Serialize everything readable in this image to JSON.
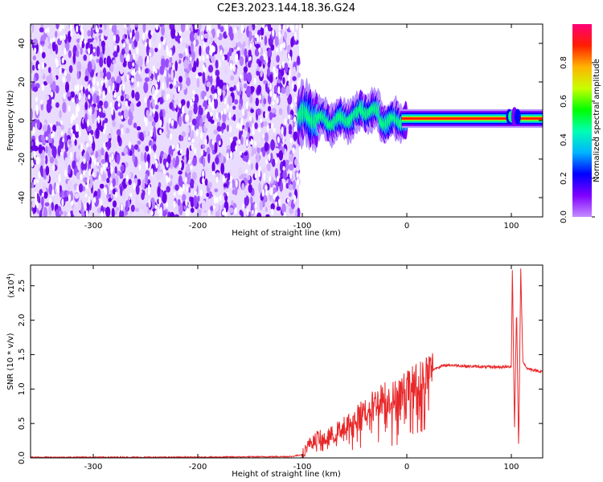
{
  "title": "C2E3.2023.144.18.36.G24",
  "chart_data": [
    {
      "type": "heatmap",
      "title": "C2E3.2023.144.18.36.G24",
      "xlabel": "Height of straight line (km)",
      "ylabel": "Frequency (Hz)",
      "xlim": [
        -360,
        130
      ],
      "ylim": [
        -50,
        50
      ],
      "xticks": [
        -300,
        -200,
        -100,
        0,
        100
      ],
      "yticks": [
        -40,
        -20,
        0,
        20,
        40
      ],
      "noise_region_x": [
        -360,
        -103
      ],
      "signal_region_x": [
        -103,
        130
      ],
      "signal_center_freq": 1,
      "colorbar": {
        "label": "Normalized spectral amplitude",
        "range": [
          0,
          1
        ],
        "ticks": [
          "0.0",
          "0.2",
          "0.4",
          "0.6",
          "0.8"
        ],
        "colors": [
          "#c68cff",
          "#7f00ff",
          "#0000ff",
          "#00b4ff",
          "#00ffb4",
          "#00ff00",
          "#c8ff00",
          "#ffb400",
          "#ff1e00",
          "#ff0078"
        ]
      },
      "grid": false
    },
    {
      "type": "line",
      "xlabel": "Height of straight line (km)",
      "ylabel": "SNR (10 * v/v)",
      "y_scale_label": "(x10",
      "y_scale_exponent": "4",
      "y_scale_suffix": ")",
      "xlim": [
        -360,
        130
      ],
      "ylim": [
        0,
        2.8
      ],
      "xticks": [
        -300,
        -200,
        -100,
        0,
        100
      ],
      "yticks": [
        "0.0",
        "0.5",
        "1.0",
        "1.5",
        "2.0",
        "2.5"
      ],
      "color": "#e8282a",
      "grid": false,
      "series": [
        {
          "points": [
            [
              -360,
              0.01
            ],
            [
              -300,
              0.01
            ],
            [
              -200,
              0.01
            ],
            [
              -110,
              0.02
            ],
            [
              -100,
              0.05
            ],
            [
              -95,
              0.18
            ],
            [
              -90,
              0.25
            ],
            [
              -85,
              0.3
            ],
            [
              -80,
              0.28
            ],
            [
              -75,
              0.3
            ],
            [
              -70,
              0.35
            ],
            [
              -65,
              0.4
            ],
            [
              -60,
              0.45
            ],
            [
              -55,
              0.5
            ],
            [
              -50,
              0.55
            ],
            [
              -45,
              0.62
            ],
            [
              -40,
              0.7
            ],
            [
              -35,
              0.75
            ],
            [
              -30,
              0.8
            ],
            [
              -25,
              0.85
            ],
            [
              -20,
              0.9
            ],
            [
              -15,
              0.85
            ],
            [
              -10,
              0.9
            ],
            [
              -5,
              0.95
            ],
            [
              0,
              1.0
            ],
            [
              5,
              1.05
            ],
            [
              10,
              1.1
            ],
            [
              15,
              1.15
            ],
            [
              20,
              1.22
            ],
            [
              25,
              1.28
            ],
            [
              30,
              1.32
            ],
            [
              40,
              1.35
            ],
            [
              50,
              1.34
            ],
            [
              60,
              1.33
            ],
            [
              80,
              1.32
            ],
            [
              95,
              1.32
            ],
            [
              100,
              1.33
            ],
            [
              101,
              2.8
            ],
            [
              103,
              0.4
            ],
            [
              105,
              2.2
            ],
            [
              107,
              0.1
            ],
            [
              109,
              2.75
            ],
            [
              111,
              1.4
            ],
            [
              115,
              1.3
            ],
            [
              120,
              1.28
            ],
            [
              130,
              1.25
            ]
          ]
        }
      ]
    }
  ]
}
